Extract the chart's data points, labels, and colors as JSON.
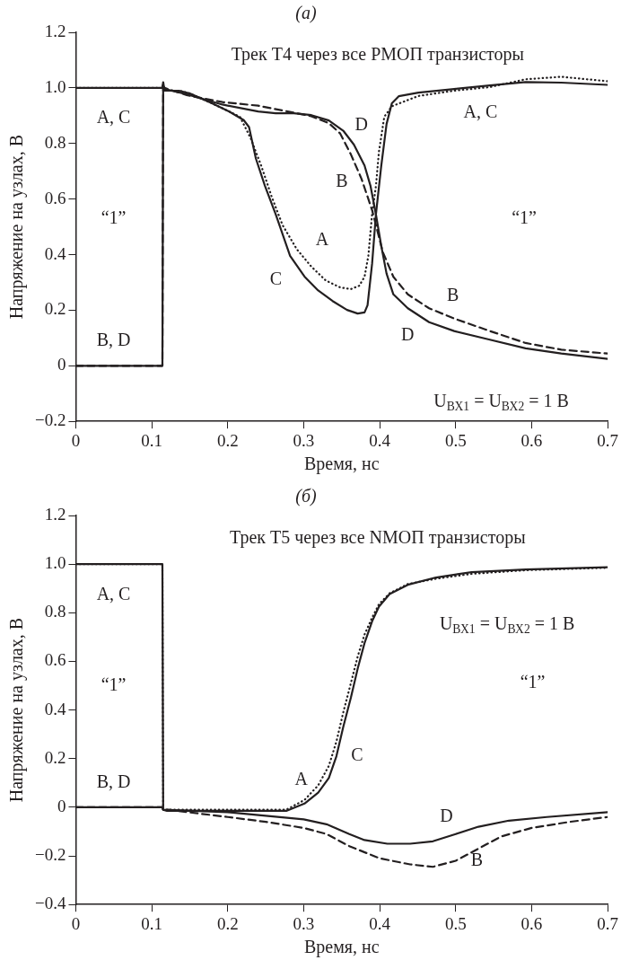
{
  "chart_data": [
    {
      "type": "line",
      "title": "(а)",
      "subtitle": "Трек Т4 через все PМОП транзисторы",
      "xlabel": "Время, нс",
      "ylabel": "Напряжение на узлах, В",
      "xlim": [
        0,
        0.7
      ],
      "xticks": [
        0,
        0.1,
        0.2,
        0.3,
        0.4,
        0.5,
        0.6,
        0.7
      ],
      "ylim": [
        -0.2,
        1.2
      ],
      "yticks": [
        {
          "value": -0.2,
          "label": "−0.2"
        },
        0,
        0.2,
        0.4,
        0.6,
        0.8,
        {
          "value": 1,
          "label": "1.0"
        },
        1.2
      ],
      "series": [
        {
          "color": "#231f20",
          "line_style": "dotted",
          "x": [
            0,
            0.114,
            0.115,
            0.117,
            0.136,
            0.15,
            0.178,
            0.202,
            0.216,
            0.23,
            0.244,
            0.258,
            0.272,
            0.291,
            0.31,
            0.329,
            0.348,
            0.362,
            0.373,
            0.38,
            0.385,
            0.39,
            0.395,
            0.399,
            0.406,
            0.416,
            0.451,
            0.498,
            0.545,
            0.592,
            0.639,
            0.7
          ],
          "values": [
            1,
            1,
            1.02,
            0.99,
            0.99,
            0.98,
            0.946,
            0.915,
            0.896,
            0.82,
            0.72,
            0.607,
            0.507,
            0.419,
            0.357,
            0.307,
            0.282,
            0.276,
            0.288,
            0.32,
            0.395,
            0.546,
            0.647,
            0.771,
            0.896,
            0.934,
            0.971,
            0.99,
            1.003,
            1.031,
            1.04,
            1.024
          ]
        },
        {
          "color": "#231f20",
          "line_style": "dashed",
          "x": [
            0,
            0.114,
            0.115,
            0.117,
            0.146,
            0.193,
            0.24,
            0.287,
            0.31,
            0.333,
            0.348,
            0.362,
            0.376,
            0.39,
            0.397,
            0.404,
            0.418,
            0.437,
            0.465,
            0.498,
            0.545,
            0.592,
            0.639,
            0.7
          ],
          "values": [
            0,
            0,
            1,
            1,
            0.974,
            0.949,
            0.936,
            0.911,
            0.898,
            0.873,
            0.836,
            0.761,
            0.673,
            0.56,
            0.485,
            0.41,
            0.32,
            0.257,
            0.207,
            0.17,
            0.125,
            0.082,
            0.058,
            0.044
          ]
        },
        {
          "color": "#231f20",
          "line_style": "solid",
          "x": [
            0,
            0.114,
            0.115,
            0.117,
            0.136,
            0.15,
            0.178,
            0.202,
            0.221,
            0.228,
            0.237,
            0.249,
            0.263,
            0.282,
            0.301,
            0.319,
            0.338,
            0.357,
            0.371,
            0.38,
            0.384,
            0.39,
            0.395,
            0.402,
            0.409,
            0.416,
            0.425,
            0.451,
            0.498,
            0.545,
            0.592,
            0.639,
            0.7
          ],
          "values": [
            1,
            1,
            1.02,
            0.99,
            0.99,
            0.98,
            0.946,
            0.915,
            0.884,
            0.859,
            0.746,
            0.647,
            0.546,
            0.396,
            0.321,
            0.271,
            0.233,
            0.201,
            0.188,
            0.192,
            0.218,
            0.368,
            0.544,
            0.719,
            0.87,
            0.945,
            0.97,
            0.983,
            0.996,
            1.009,
            1.021,
            1.019,
            1.011
          ]
        },
        {
          "color": "#231f20",
          "line_style": "solid",
          "x": [
            0,
            0.114,
            0.115,
            0.117,
            0.146,
            0.193,
            0.24,
            0.263,
            0.287,
            0.31,
            0.333,
            0.352,
            0.366,
            0.38,
            0.388,
            0.395,
            0.402,
            0.409,
            0.418,
            0.437,
            0.465,
            0.498,
            0.545,
            0.592,
            0.639,
            0.7
          ],
          "values": [
            0,
            0,
            1,
            0.996,
            0.977,
            0.94,
            0.915,
            0.909,
            0.909,
            0.902,
            0.883,
            0.846,
            0.796,
            0.721,
            0.646,
            0.545,
            0.432,
            0.332,
            0.257,
            0.207,
            0.157,
            0.125,
            0.094,
            0.063,
            0.044,
            0.025
          ]
        }
      ],
      "annotations": [
        "A, C",
        "“1”",
        "B, D",
        "D",
        "B",
        "A",
        "C",
        "B",
        "D",
        "A, C",
        "“1”",
        "U$_{ВХ1}$ = U$_{ВХ2}$ = 1 В"
      ]
    },
    {
      "type": "line",
      "title": "(б)",
      "subtitle": "Трек Т5 через все NМОП транзисторы",
      "xlabel": "Время, нс",
      "ylabel": "Напряжение на узлах, В",
      "xlim": [
        0,
        0.7
      ],
      "xticks": [
        0,
        0.1,
        0.2,
        0.3,
        0.4,
        0.5,
        0.6,
        0.7
      ],
      "ylim": [
        -0.4,
        1.2
      ],
      "yticks": [
        {
          "value": -0.4,
          "label": "−0.4"
        },
        {
          "value": -0.2,
          "label": "−0.2"
        },
        0,
        0.2,
        0.4,
        0.6,
        0.8,
        {
          "value": 1,
          "label": "1.0"
        },
        1.2
      ],
      "series": [
        {
          "color": "#231f20",
          "line_style": "dotted",
          "x": [
            0,
            0.114,
            0.115,
            0.12,
            0.2,
            0.277,
            0.301,
            0.319,
            0.333,
            0.343,
            0.352,
            0.362,
            0.371,
            0.38,
            0.39,
            0.399,
            0.413,
            0.437,
            0.474,
            0.521,
            0.592,
            0.7
          ],
          "values": [
            1,
            1,
            -0.01,
            -0.01,
            -0.01,
            -0.01,
            0.03,
            0.09,
            0.17,
            0.27,
            0.39,
            0.51,
            0.62,
            0.71,
            0.78,
            0.835,
            0.88,
            0.918,
            0.94,
            0.96,
            0.975,
            0.985
          ]
        },
        {
          "color": "#231f20",
          "line_style": "dashed",
          "x": [
            0,
            0.114,
            0.115,
            0.12,
            0.2,
            0.25,
            0.3,
            0.33,
            0.36,
            0.4,
            0.44,
            0.47,
            0.5,
            0.53,
            0.56,
            0.6,
            0.65,
            0.7
          ],
          "values": [
            0,
            0,
            -0.01,
            -0.01,
            -0.04,
            -0.06,
            -0.085,
            -0.11,
            -0.16,
            -0.21,
            -0.235,
            -0.245,
            -0.22,
            -0.17,
            -0.12,
            -0.085,
            -0.06,
            -0.04
          ]
        },
        {
          "color": "#231f20",
          "line_style": "solid",
          "x": [
            0,
            0.114,
            0.115,
            0.12,
            0.2,
            0.277,
            0.301,
            0.319,
            0.333,
            0.343,
            0.352,
            0.362,
            0.371,
            0.38,
            0.39,
            0.399,
            0.413,
            0.437,
            0.474,
            0.521,
            0.592,
            0.7
          ],
          "values": [
            1,
            1,
            -0.01,
            -0.015,
            -0.015,
            -0.015,
            0.015,
            0.06,
            0.12,
            0.21,
            0.33,
            0.45,
            0.57,
            0.675,
            0.765,
            0.825,
            0.877,
            0.915,
            0.945,
            0.967,
            0.978,
            0.987
          ]
        },
        {
          "color": "#231f20",
          "line_style": "solid",
          "x": [
            0,
            0.114,
            0.115,
            0.2,
            0.25,
            0.3,
            0.33,
            0.36,
            0.38,
            0.41,
            0.44,
            0.47,
            0.5,
            0.53,
            0.57,
            0.62,
            0.7
          ],
          "values": [
            0,
            0,
            -0.01,
            -0.02,
            -0.035,
            -0.05,
            -0.07,
            -0.11,
            -0.135,
            -0.15,
            -0.15,
            -0.14,
            -0.11,
            -0.08,
            -0.055,
            -0.04,
            -0.02
          ]
        }
      ],
      "annotations": [
        "A, C",
        "“1”",
        "B, D",
        "A",
        "C",
        "D",
        "B",
        "“1”",
        "U$_{ВХ1}$ = U$_{ВХ2}$ = 1 В"
      ]
    }
  ]
}
